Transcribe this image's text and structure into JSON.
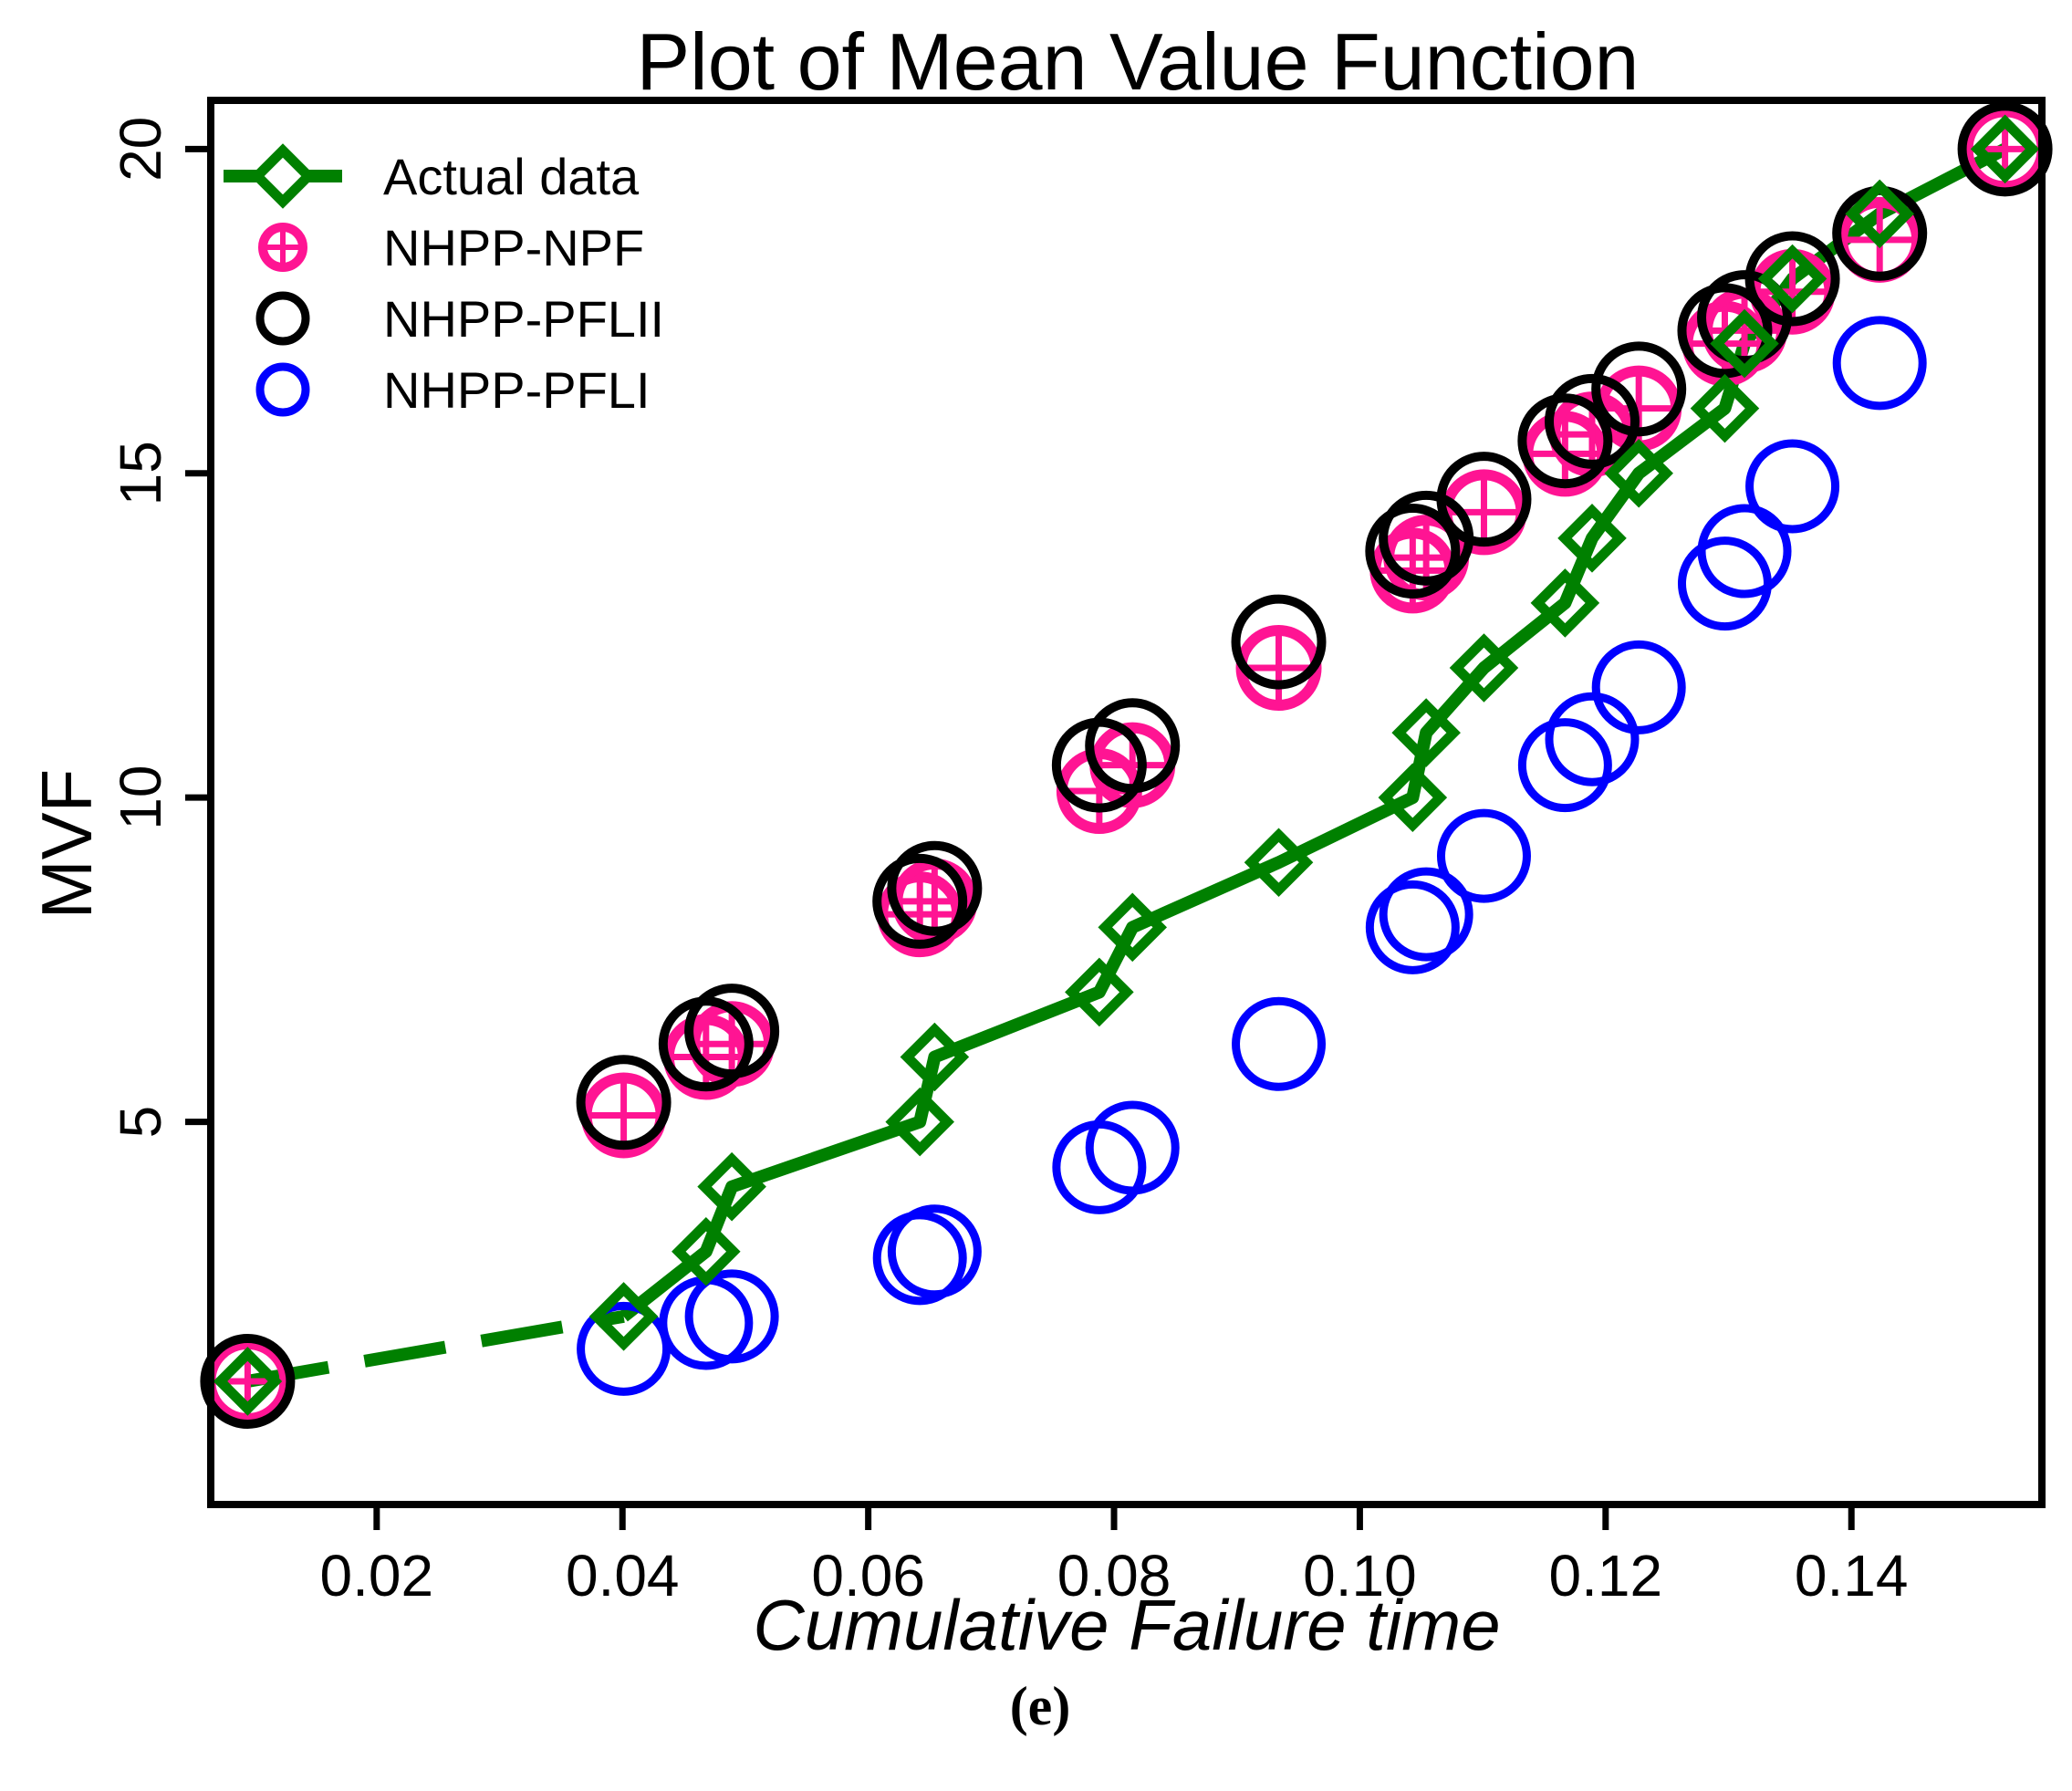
{
  "chart_data": {
    "type": "scatter",
    "title": "Plot of Mean Value Function",
    "xlabel": "Cumulative Failure time",
    "ylabel": "MVF",
    "xlim": [
      0.0065,
      0.1555
    ],
    "ylim": [
      -0.9,
      20.75
    ],
    "xticks": [
      0.02,
      0.04,
      0.06,
      0.08,
      0.1,
      0.12,
      0.14
    ],
    "xtick_labels": [
      "0.02",
      "0.04",
      "0.06",
      "0.08",
      "0.10",
      "0.12",
      "0.14"
    ],
    "yticks": [
      5,
      10,
      15,
      20
    ],
    "ytick_labels": [
      "5",
      "10",
      "15",
      "20"
    ],
    "legend_position": "top-left",
    "x": [
      0.0095,
      0.0401,
      0.0468,
      0.0489,
      0.0642,
      0.0654,
      0.0788,
      0.0815,
      0.0934,
      0.1043,
      0.1054,
      0.1101,
      0.1167,
      0.1189,
      0.1227,
      0.1297,
      0.1313,
      0.1352,
      0.1423,
      0.1525
    ],
    "series": [
      {
        "name": "Actual data",
        "color": "#008000",
        "marker": "diamond",
        "line": "dashed",
        "values": [
          1,
          2,
          3,
          4,
          5,
          6,
          7,
          8,
          9,
          10,
          11,
          12,
          13,
          14,
          15,
          16,
          17,
          18,
          19,
          20
        ]
      },
      {
        "name": "NHPP-NPF",
        "color": "#ff1493",
        "marker": "circle-plus",
        "values": [
          1.0,
          5.1,
          6.0,
          6.2,
          8.2,
          8.4,
          10.1,
          10.5,
          12.0,
          13.5,
          13.7,
          14.4,
          15.3,
          15.6,
          16.0,
          17.0,
          17.2,
          17.8,
          18.6,
          20.0
        ]
      },
      {
        "name": "NHPP-PFLII",
        "color": "#000000",
        "marker": "circle",
        "values": [
          1.0,
          5.3,
          6.2,
          6.4,
          8.4,
          8.6,
          10.5,
          10.8,
          12.4,
          13.8,
          14.0,
          14.6,
          15.5,
          15.8,
          16.3,
          17.2,
          17.4,
          18.0,
          18.7,
          20.0
        ]
      },
      {
        "name": "NHPP-PFLI",
        "color": "#0000ff",
        "marker": "circle",
        "values": [
          null,
          1.5,
          1.9,
          2.0,
          2.9,
          3.0,
          4.3,
          4.6,
          6.2,
          8.0,
          8.2,
          9.1,
          10.5,
          10.9,
          11.7,
          13.3,
          13.8,
          14.8,
          16.7,
          null
        ]
      }
    ]
  },
  "caption": "(e)"
}
